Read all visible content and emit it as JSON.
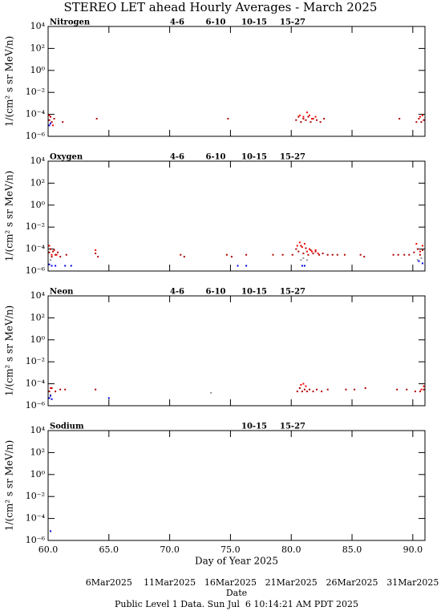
{
  "title": "STEREO LET ahead Hourly Averages - March 2025",
  "footer": "Public Level 1 Data. Sun Jul  6 10:14:21 AM PDT 2025",
  "date_axis": {
    "label": "Date",
    "ticks": [
      {
        "value": 65,
        "label": "6Mar2025"
      },
      {
        "value": 70,
        "label": "11Mar2025"
      },
      {
        "value": 75,
        "label": "16Mar2025"
      },
      {
        "value": 80,
        "label": "21Mar2025"
      },
      {
        "value": 85,
        "label": "26Mar2025"
      },
      {
        "value": 90,
        "label": "31Mar2025"
      }
    ]
  },
  "chart_data": [
    {
      "type": "scatter",
      "title": "Nitrogen",
      "ylabel": "1/(cm² s sr MeV/n)",
      "log_y": true,
      "xlim": [
        60,
        91
      ],
      "ylim": [
        1e-06,
        10000
      ],
      "yticks": [
        {
          "value": 10000,
          "label": "10⁴"
        },
        {
          "value": 100,
          "label": "10²"
        },
        {
          "value": 1,
          "label": "10⁰"
        },
        {
          "value": 0.01,
          "label": "10⁻²"
        },
        {
          "value": 0.0001,
          "label": "10⁻⁴"
        },
        {
          "value": 1e-06,
          "label": "10⁻⁶"
        }
      ],
      "series": [
        {
          "name": "4-6",
          "color": "#b00000",
          "x": [
            60.1,
            60.2,
            60.3,
            60.5,
            61.2,
            64,
            74.8,
            80.4,
            80.6,
            80.8,
            81,
            81.2,
            81.4,
            81.6,
            81.8,
            82.1,
            82.4,
            82.7,
            88.9,
            90.3,
            90.5,
            90.7,
            90.9
          ],
          "values": [
            3e-05,
            6e-05,
            2e-05,
            4e-05,
            2e-05,
            4e-05,
            4e-05,
            3e-05,
            6e-05,
            2e-05,
            4e-05,
            3e-05,
            6e-05,
            2e-05,
            4e-05,
            3e-05,
            2e-05,
            4e-05,
            4e-05,
            2e-05,
            4e-05,
            2e-05,
            3e-05
          ]
        },
        {
          "name": "6-10",
          "color": "#ff0000",
          "x": [
            60.1,
            60.4,
            80.7,
            81,
            81.3,
            81.5,
            81.7,
            82,
            90.6,
            90.8
          ],
          "values": [
            8e-05,
            1e-05,
            8e-05,
            6e-05,
            0.00015,
            8e-05,
            4e-05,
            6e-05,
            6e-05,
            8e-05
          ]
        },
        {
          "name": "10-15",
          "color": "#909090",
          "x": [],
          "values": []
        },
        {
          "name": "15-27",
          "color": "#0000dd",
          "x": [
            60.1,
            60.2
          ],
          "values": [
            1e-05,
            1.5e-05
          ]
        }
      ]
    },
    {
      "type": "scatter",
      "title": "Oxygen",
      "ylabel": "1/(cm² s sr MeV/n)",
      "log_y": true,
      "xlim": [
        60,
        91
      ],
      "ylim": [
        1e-06,
        10000
      ],
      "yticks": [
        {
          "value": 10000,
          "label": "10⁴"
        },
        {
          "value": 100,
          "label": "10²"
        },
        {
          "value": 1,
          "label": "10⁰"
        },
        {
          "value": 0.01,
          "label": "10⁻²"
        },
        {
          "value": 0.0001,
          "label": "10⁻⁴"
        },
        {
          "value": 1e-06,
          "label": "10⁻⁶"
        }
      ],
      "series": [
        {
          "name": "4-6",
          "color": "#b00000",
          "x": [
            60.1,
            60.2,
            60.3,
            60.4,
            60.6,
            60.8,
            61,
            61.5,
            63.9,
            64.1,
            70.9,
            71.2,
            74.7,
            75.1,
            76.3,
            78.5,
            79.3,
            80.1,
            80.4,
            80.6,
            80.8,
            81,
            81.2,
            81.4,
            81.6,
            81.8,
            82,
            82.3,
            82.6,
            83,
            83.4,
            83.8,
            84.4,
            85.7,
            86,
            88.4,
            88.8,
            89.3,
            89.7,
            90.1,
            90.4,
            90.6,
            90.8
          ],
          "values": [
            5e-05,
            0.0001,
            2e-05,
            6e-05,
            3e-05,
            5e-05,
            2e-05,
            3e-05,
            4e-05,
            2e-05,
            3e-05,
            2e-05,
            3e-05,
            2e-05,
            3e-05,
            3e-05,
            3e-05,
            3e-05,
            0.0001,
            6e-05,
            0.0002,
            4e-05,
            0.00012,
            3e-05,
            8e-05,
            4e-05,
            6e-05,
            3e-05,
            4e-05,
            3e-05,
            3e-05,
            3e-05,
            3e-05,
            3e-05,
            2e-05,
            3e-05,
            3e-05,
            3e-05,
            3e-05,
            5e-05,
            0.0001,
            3e-05,
            8e-05
          ]
        },
        {
          "name": "6-10",
          "color": "#ff0000",
          "x": [
            60.1,
            60.3,
            60.5,
            60.7,
            63.9,
            80.5,
            80.7,
            80.9,
            81.1,
            81.3,
            81.5,
            81.7,
            82,
            82.2,
            90.3,
            90.6,
            90.8
          ],
          "values": [
            0.0002,
            3e-05,
            8e-05,
            3e-05,
            8e-05,
            0.0002,
            0.0004,
            0.00015,
            0.0003,
            6e-05,
            0.0001,
            6e-05,
            8e-05,
            4e-05,
            0.0003,
            6e-05,
            0.0002
          ]
        },
        {
          "name": "10-15",
          "color": "#909090",
          "x": [
            60.2,
            80.8,
            81,
            81.3,
            90.4,
            90.7
          ],
          "values": [
            1e-05,
            1e-05,
            1.5e-05,
            1e-05,
            1e-05,
            1.5e-05
          ]
        },
        {
          "name": "15-27",
          "color": "#0000dd",
          "x": [
            60.1,
            60.3,
            60.6,
            61.4,
            61.9,
            75.6,
            76.3,
            80.9,
            81.1,
            90.5,
            90.8
          ],
          "values": [
            4e-06,
            3e-06,
            3e-06,
            3e-06,
            3e-06,
            3e-06,
            3e-06,
            3e-06,
            3e-06,
            8e-06,
            5e-06
          ]
        }
      ]
    },
    {
      "type": "scatter",
      "title": "Neon",
      "ylabel": "1/(cm² s sr MeV/n)",
      "log_y": true,
      "xlim": [
        60,
        91
      ],
      "ylim": [
        1e-06,
        10000
      ],
      "yticks": [
        {
          "value": 10000,
          "label": "10⁴"
        },
        {
          "value": 100,
          "label": "10²"
        },
        {
          "value": 1,
          "label": "10⁰"
        },
        {
          "value": 0.01,
          "label": "10⁻²"
        },
        {
          "value": 0.0001,
          "label": "10⁻⁴"
        },
        {
          "value": 1e-06,
          "label": "10⁻⁶"
        }
      ],
      "series": [
        {
          "name": "4-6",
          "color": "#b00000",
          "x": [
            60.1,
            60.3,
            60.6,
            61,
            61.4,
            63.9,
            80.5,
            80.7,
            80.9,
            81.1,
            81.3,
            81.5,
            81.8,
            82.1,
            82.5,
            83,
            84.5,
            85.2,
            86.1,
            88.7,
            89.5,
            90.2,
            90.6,
            90.9
          ],
          "values": [
            2e-05,
            4e-05,
            2e-05,
            3e-05,
            3e-05,
            3e-05,
            2e-05,
            4e-05,
            2e-05,
            3e-05,
            2e-05,
            3e-05,
            2e-05,
            3e-05,
            2e-05,
            3e-05,
            3e-05,
            3e-05,
            4e-05,
            3e-05,
            3e-05,
            2e-05,
            2e-05,
            3e-05
          ]
        },
        {
          "name": "6-10",
          "color": "#ff0000",
          "x": [
            60.2,
            80.8,
            81,
            81.2,
            90.7,
            90.9
          ],
          "values": [
            4e-05,
            8e-05,
            0.0001,
            6e-05,
            3e-05,
            6e-05
          ]
        },
        {
          "name": "10-15",
          "color": "#909090",
          "x": [
            60.2,
            73.4
          ],
          "values": [
            1e-05,
            1.5e-05
          ]
        },
        {
          "name": "15-27",
          "color": "#0000dd",
          "x": [
            60.1,
            60.2,
            60.3,
            65
          ],
          "values": [
            5e-06,
            8e-06,
            4e-06,
            5e-06
          ]
        }
      ]
    },
    {
      "type": "scatter",
      "title": "Sodium",
      "ylabel": "1/(cm² s sr MeV/n)",
      "xlabel": "Day of Year 2025",
      "log_y": true,
      "xlim": [
        60,
        91
      ],
      "ylim": [
        1e-06,
        10000
      ],
      "yticks": [
        {
          "value": 10000,
          "label": "10⁴"
        },
        {
          "value": 100,
          "label": "10²"
        },
        {
          "value": 1,
          "label": "10⁰"
        },
        {
          "value": 0.01,
          "label": "10⁻²"
        },
        {
          "value": 0.0001,
          "label": "10⁻⁴"
        },
        {
          "value": 1e-06,
          "label": "10⁻⁶"
        }
      ],
      "xticks": [
        {
          "value": 60,
          "label": "60.0"
        },
        {
          "value": 65,
          "label": "65.0"
        },
        {
          "value": 70,
          "label": "70.0"
        },
        {
          "value": 75,
          "label": "75.0"
        },
        {
          "value": 80,
          "label": "80.0"
        },
        {
          "value": 85,
          "label": "85.0"
        },
        {
          "value": 90,
          "label": "90.0"
        }
      ],
      "series": [
        {
          "name": "10-15",
          "color": "#909090",
          "x": [],
          "values": []
        },
        {
          "name": "15-27",
          "color": "#0000dd",
          "x": [
            60.2
          ],
          "values": [
            7e-06
          ]
        }
      ]
    }
  ]
}
